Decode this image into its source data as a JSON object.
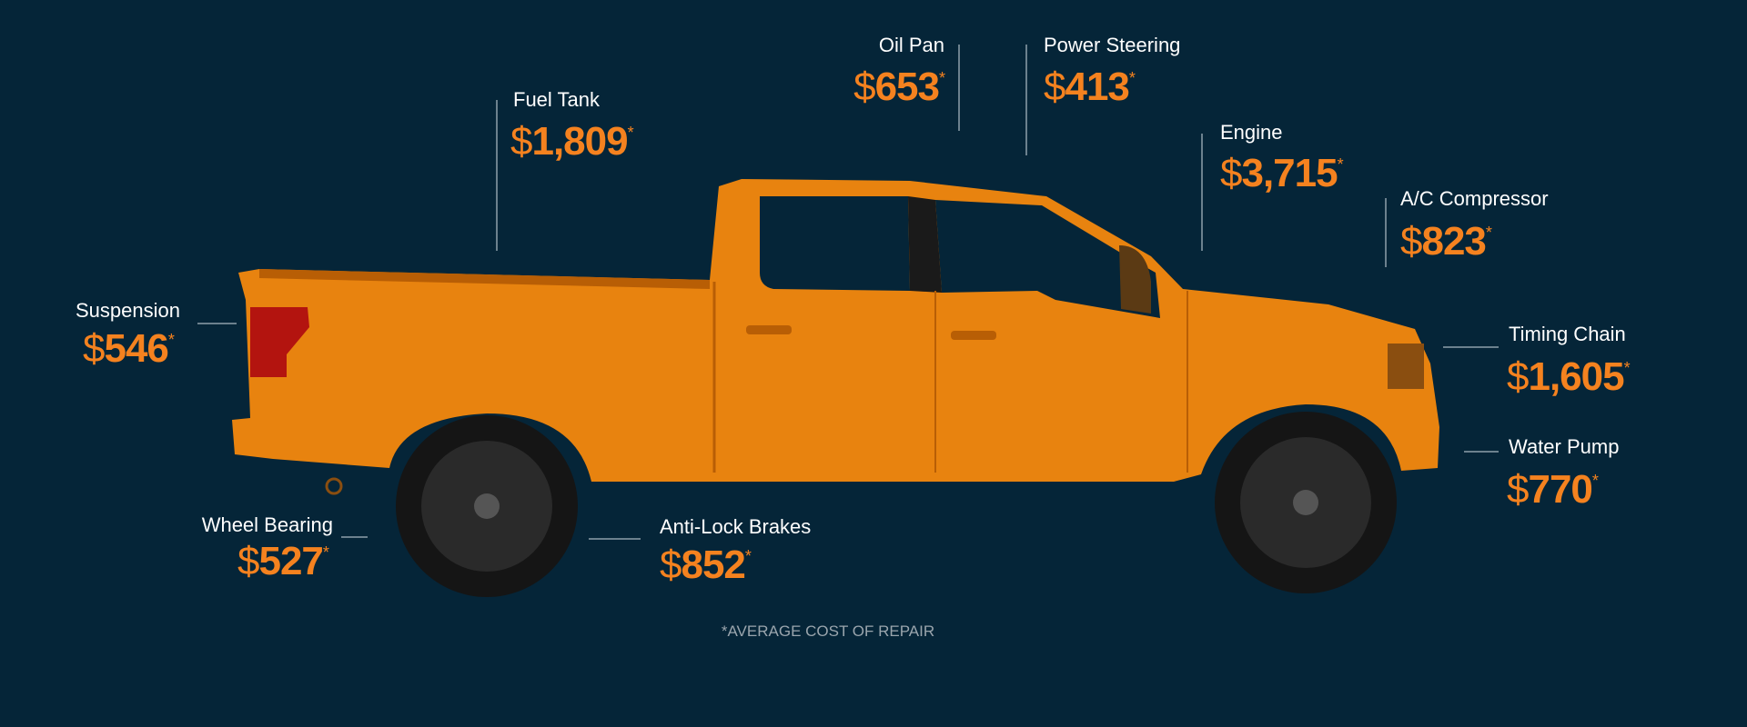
{
  "currency": "$",
  "asterisk": "*",
  "parts": [
    {
      "name": "Oil Pan",
      "amount": "653"
    },
    {
      "name": "Power Steering",
      "amount": "413"
    },
    {
      "name": "Fuel Tank",
      "amount": "1,809"
    },
    {
      "name": "Engine",
      "amount": "3,715"
    },
    {
      "name": "A/C Compressor",
      "amount": "823"
    },
    {
      "name": "Suspension",
      "amount": "546"
    },
    {
      "name": "Timing Chain",
      "amount": "1,605"
    },
    {
      "name": "Water Pump",
      "amount": "770"
    },
    {
      "name": "Wheel Bearing",
      "amount": "527"
    },
    {
      "name": "Anti-Lock Brakes",
      "amount": "852"
    }
  ],
  "footnote": "*AVERAGE COST OF REPAIR"
}
